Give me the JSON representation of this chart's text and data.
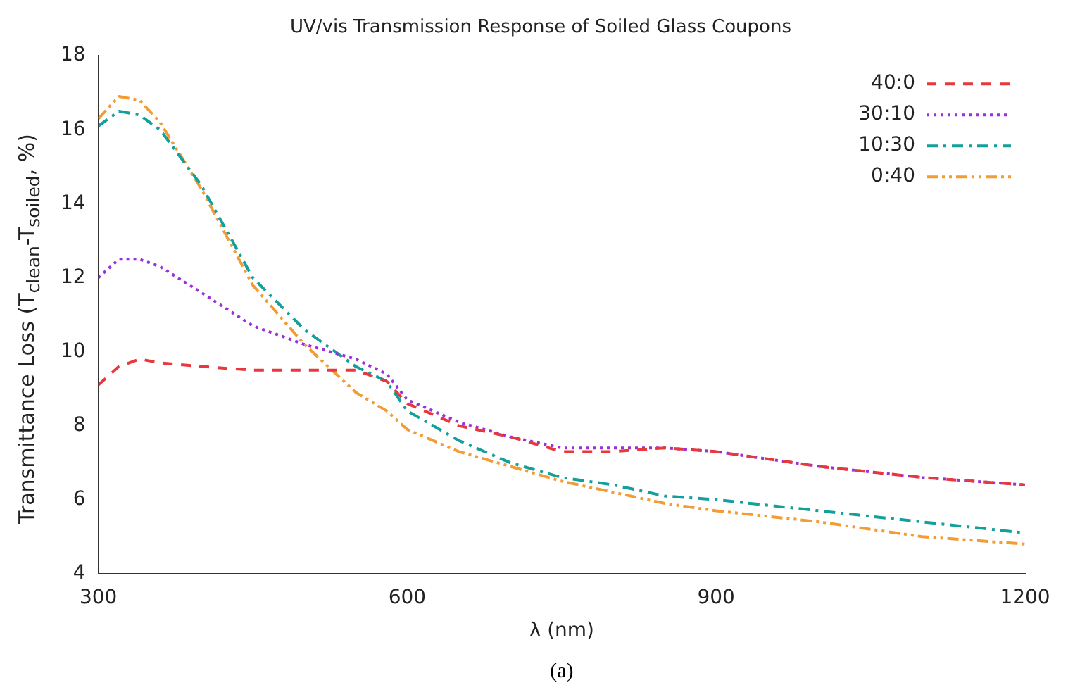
{
  "chart_data": {
    "type": "line",
    "title": "UV/vis Transmission Response of Soiled Glass Coupons",
    "xlabel": "λ (nm)",
    "ylabel": "Transmittance Loss (T$_{clean}$-T$_{soiled}$, %)",
    "annotations": [
      "(a)"
    ],
    "x": [
      300,
      320,
      340,
      360,
      400,
      450,
      500,
      550,
      580,
      600,
      650,
      700,
      750,
      800,
      850,
      900,
      1000,
      1100,
      1200
    ],
    "series": [
      {
        "name": "40:0",
        "color": "#e8383d",
        "line_style": "dashed",
        "values": [
          9.1,
          9.6,
          9.8,
          9.7,
          9.6,
          9.5,
          9.5,
          9.5,
          9.2,
          8.6,
          8.0,
          7.7,
          7.3,
          7.3,
          7.4,
          7.3,
          6.9,
          6.6,
          6.4
        ]
      },
      {
        "name": "30:10",
        "color": "#9b30d9",
        "line_style": "dotted",
        "values": [
          12.0,
          12.5,
          12.5,
          12.3,
          11.6,
          10.7,
          10.2,
          9.8,
          9.4,
          8.7,
          8.1,
          7.7,
          7.4,
          7.4,
          7.4,
          7.3,
          6.9,
          6.6,
          6.4
        ]
      },
      {
        "name": "10:30",
        "color": "#14a09a",
        "line_style": "dashdot",
        "values": [
          16.1,
          16.5,
          16.4,
          16.0,
          14.5,
          12.0,
          10.6,
          9.6,
          9.2,
          8.4,
          7.6,
          7.0,
          6.6,
          6.4,
          6.1,
          6.0,
          5.7,
          5.4,
          5.1
        ]
      },
      {
        "name": "0:40",
        "color": "#f39c34",
        "line_style": "dashdotdot",
        "values": [
          16.3,
          16.9,
          16.8,
          16.2,
          14.4,
          11.8,
          10.2,
          8.9,
          8.4,
          7.9,
          7.3,
          6.9,
          6.5,
          6.2,
          5.9,
          5.7,
          5.4,
          5.0,
          4.8
        ]
      }
    ],
    "xlim": [
      300,
      1200
    ],
    "xticks": [
      300,
      600,
      900,
      1200
    ],
    "ylim": [
      4,
      18
    ],
    "yticks": [
      4,
      6,
      8,
      10,
      12,
      14,
      16,
      18
    ],
    "grid": false,
    "legend": "top right",
    "marker": "none"
  }
}
